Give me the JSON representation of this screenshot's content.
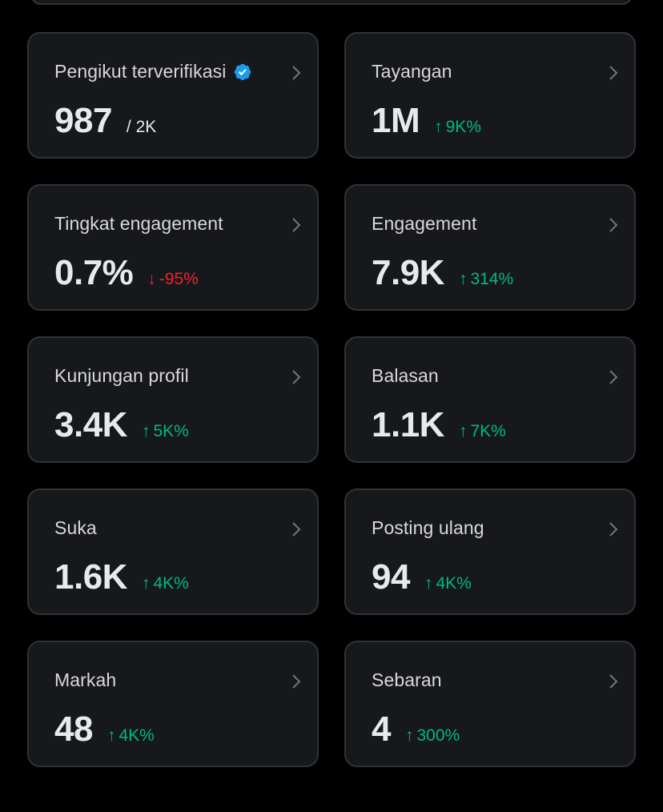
{
  "colors": {
    "background": "#000000",
    "card_bg": "#16181c",
    "card_border": "#2f3336",
    "positive": "#00ba7c",
    "negative": "#f4212e",
    "verified": "#1d9bf0"
  },
  "icons": {
    "verified": "verified-badge-icon",
    "chevron": "chevron-right-icon",
    "up": "arrow-up-icon",
    "down": "arrow-down-icon"
  },
  "metrics": [
    {
      "label": "Pengikut terverifikasi",
      "value": "987",
      "sub": "/ 2K",
      "verified": true
    },
    {
      "label": "Tayangan",
      "value": "1M",
      "arrow": "↑",
      "change": "9K%",
      "direction": "up"
    },
    {
      "label": "Tingkat engagement",
      "value": "0.7%",
      "arrow": "↓",
      "change": "-95%",
      "direction": "down"
    },
    {
      "label": "Engagement",
      "value": "7.9K",
      "arrow": "↑",
      "change": "314%",
      "direction": "up"
    },
    {
      "label": "Kunjungan profil",
      "value": "3.4K",
      "arrow": "↑",
      "change": "5K%",
      "direction": "up"
    },
    {
      "label": "Balasan",
      "value": "1.1K",
      "arrow": "↑",
      "change": "7K%",
      "direction": "up"
    },
    {
      "label": "Suka",
      "value": "1.6K",
      "arrow": "↑",
      "change": "4K%",
      "direction": "up"
    },
    {
      "label": "Posting ulang",
      "value": "94",
      "arrow": "↑",
      "change": "4K%",
      "direction": "up"
    },
    {
      "label": "Markah",
      "value": "48",
      "arrow": "↑",
      "change": "4K%",
      "direction": "up"
    },
    {
      "label": "Sebaran",
      "value": "4",
      "arrow": "↑",
      "change": "300%",
      "direction": "up"
    }
  ]
}
